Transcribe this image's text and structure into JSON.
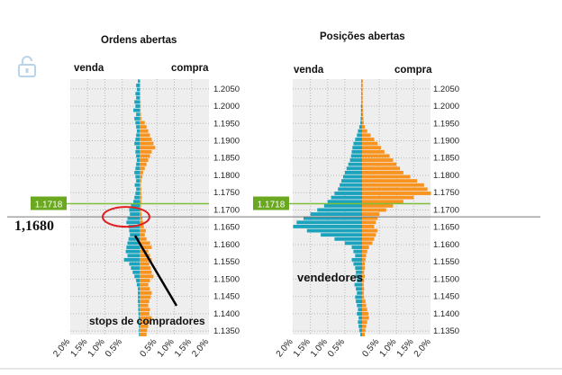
{
  "colors": {
    "sell": "#1ba3bd",
    "buy": "#f7931e",
    "price_badge": "#6aa820",
    "price_line": "#7cbf3a",
    "ring": "#e02020",
    "grid": "#b8b8b8",
    "panel": "#eeeeee"
  },
  "icons": {
    "lock": "lock-open-icon"
  },
  "annotations": {
    "price_label": "1,1680",
    "sellers": "vendedores",
    "buyer_stops": "stops de compradores"
  },
  "chart_data": [
    {
      "type": "bar",
      "title": "Ordens abertas",
      "left_label": "venda",
      "right_label": "compra",
      "y_ticks": [
        "1.2050",
        "1.2000",
        "1.1950",
        "1.1900",
        "1.1850",
        "1.1800",
        "1.1750",
        "1.1700",
        "1.1650",
        "1.1600",
        "1.1550",
        "1.1500",
        "1.1450",
        "1.1400",
        "1.1350"
      ],
      "y_tick_values": [
        1.205,
        1.2,
        1.195,
        1.19,
        1.185,
        1.18,
        1.175,
        1.17,
        1.165,
        1.16,
        1.155,
        1.15,
        1.145,
        1.14,
        1.135
      ],
      "ylim": [
        1.134,
        1.2078
      ],
      "x_ticks": [
        "2.0%",
        "1.5%",
        "1.0%",
        "0.5%",
        "0.5%",
        "1.0%",
        "1.5%",
        "2.0%"
      ],
      "xlim": [
        -2.0,
        2.0
      ],
      "current_price": 1.1718,
      "current_price_label": "1.1718",
      "reference_price": 1.168,
      "bin": 0.0012,
      "sell": [
        0.05,
        0.1,
        0.08,
        0.12,
        0.1,
        0.15,
        0.12,
        0.18,
        0.1,
        0.15,
        0.12,
        0.1,
        0.08,
        0.1,
        0.12,
        0.15,
        0.1,
        0.12,
        0.1,
        0.08,
        0.1,
        0.12,
        0.15,
        0.12,
        0.1,
        0.14,
        0.1,
        0.12,
        0.15,
        0.18,
        0.25,
        0.3,
        0.28,
        0.35,
        0.38,
        0.32,
        0.3,
        0.28,
        0.32,
        0.35,
        0.38,
        0.4,
        0.35,
        0.45,
        0.3,
        0.25,
        0.2,
        0.15,
        0.1,
        0.08,
        0.05,
        0.05,
        0.05,
        0.05,
        0.04,
        0.04,
        0.03,
        0.03,
        0.02,
        0.02,
        0.02,
        0.02
      ],
      "buy": [
        0.02,
        0.02,
        0.02,
        0.02,
        0.02,
        0.03,
        0.03,
        0.03,
        0.04,
        0.05,
        0.15,
        0.2,
        0.25,
        0.3,
        0.35,
        0.4,
        0.45,
        0.35,
        0.3,
        0.25,
        0.2,
        0.15,
        0.1,
        0.08,
        0.05,
        0.04,
        0.05,
        0.05,
        0.06,
        0.05,
        0.04,
        0.05,
        0.06,
        0.08,
        0.1,
        0.12,
        0.18,
        0.15,
        0.2,
        0.3,
        0.35,
        0.25,
        0.3,
        0.35,
        0.28,
        0.32,
        0.35,
        0.4,
        0.3,
        0.25,
        0.3,
        0.35,
        0.32,
        0.28,
        0.25,
        0.3,
        0.28,
        0.35,
        0.3,
        0.25,
        0.22,
        0.2
      ]
    },
    {
      "type": "bar",
      "title": "Posições abertas",
      "left_label": "venda",
      "right_label": "compra",
      "y_ticks": [
        "1.2050",
        "1.2000",
        "1.1950",
        "1.1900",
        "1.1850",
        "1.1800",
        "1.1750",
        "1.1700",
        "1.1650",
        "1.1600",
        "1.1550",
        "1.1500",
        "1.1450",
        "1.1400",
        "1.1350"
      ],
      "y_tick_values": [
        1.205,
        1.2,
        1.195,
        1.19,
        1.185,
        1.18,
        1.175,
        1.17,
        1.165,
        1.16,
        1.155,
        1.15,
        1.145,
        1.14,
        1.135
      ],
      "ylim": [
        1.134,
        1.2078
      ],
      "x_ticks": [
        "2.0%",
        "1.5%",
        "1.0%",
        "0.5%",
        "0.5%",
        "1.0%",
        "1.5%",
        "2.0%"
      ],
      "xlim": [
        -2.0,
        2.0
      ],
      "current_price": 1.1718,
      "current_price_label": "1.1718",
      "reference_price": 1.168,
      "bin": 0.0012,
      "sell": [
        0.02,
        0.02,
        0.02,
        0.02,
        0.02,
        0.02,
        0.03,
        0.03,
        0.03,
        0.04,
        0.05,
        0.08,
        0.12,
        0.15,
        0.2,
        0.25,
        0.28,
        0.3,
        0.32,
        0.35,
        0.4,
        0.45,
        0.5,
        0.55,
        0.6,
        0.65,
        0.7,
        0.8,
        0.9,
        1.0,
        1.1,
        1.3,
        1.5,
        1.7,
        1.9,
        2.0,
        1.6,
        1.2,
        0.8,
        0.5,
        0.3,
        0.25,
        0.2,
        0.3,
        0.25,
        0.2,
        0.18,
        0.2,
        0.15,
        0.22,
        0.18,
        0.15,
        0.2,
        0.18,
        0.15,
        0.12,
        0.15,
        0.1,
        0.12,
        0.1,
        0.08,
        0.05
      ],
      "buy": [
        0.02,
        0.02,
        0.02,
        0.02,
        0.02,
        0.02,
        0.02,
        0.03,
        0.03,
        0.04,
        0.05,
        0.08,
        0.15,
        0.25,
        0.35,
        0.45,
        0.55,
        0.65,
        0.8,
        0.9,
        1.0,
        1.1,
        1.2,
        1.4,
        1.6,
        1.8,
        1.9,
        2.0,
        1.5,
        1.2,
        0.9,
        0.7,
        0.5,
        0.45,
        0.4,
        0.35,
        0.45,
        0.4,
        0.35,
        0.3,
        0.2,
        0.15,
        0.12,
        0.1,
        0.08,
        0.08,
        0.06,
        0.08,
        0.06,
        0.05,
        0.06,
        0.05,
        0.06,
        0.1,
        0.12,
        0.15,
        0.18,
        0.2,
        0.15,
        0.12,
        0.1,
        0.08
      ]
    }
  ]
}
